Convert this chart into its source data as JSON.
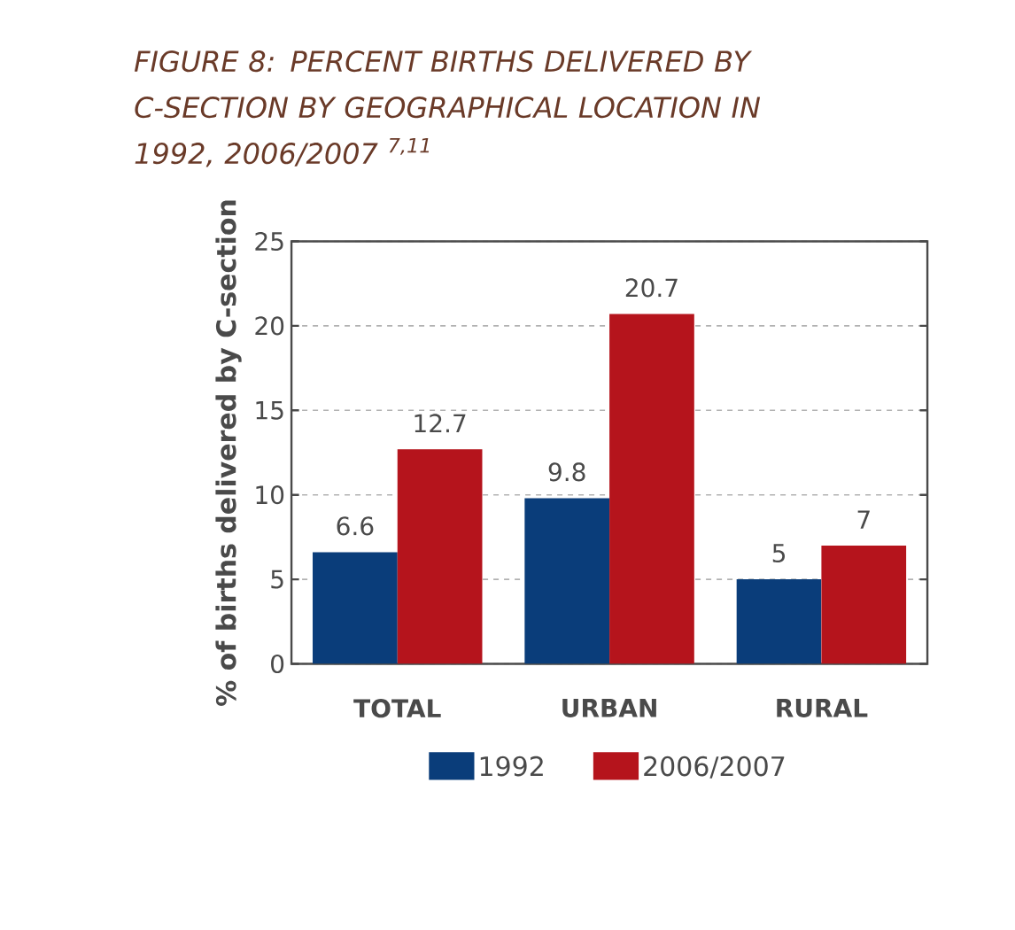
{
  "chart_data": {
    "type": "bar",
    "title": "FIGURE 8: PERCENT BIRTHS DELIVERED BY C-SECTION BY GEOGRAPHICAL LOCATION IN 1992, 2006/2007 $^{7,11}$",
    "ylabel": "% of births delivered by C-section",
    "categories": [
      "TOTAL",
      "URBAN",
      "RURAL"
    ],
    "series": [
      {
        "name": "1992",
        "color": "#0a3d7a",
        "values": [
          6.6,
          9.8,
          5
        ]
      },
      {
        "name": "2006/2007",
        "color": "#b5141c",
        "values": [
          12.7,
          20.7,
          7
        ]
      }
    ],
    "ylim": [
      0,
      25
    ],
    "yticks": [
      0,
      5,
      10,
      15,
      20,
      25
    ],
    "grid": "y",
    "legend": "bottom",
    "data_labels": true
  }
}
